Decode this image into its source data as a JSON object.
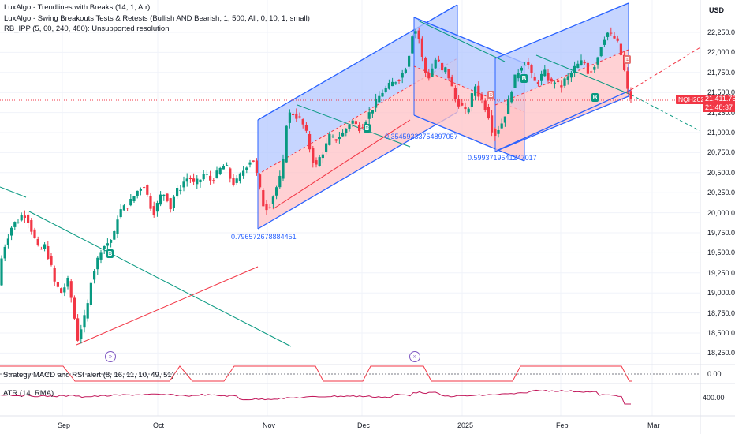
{
  "legends": [
    "LuxAlgo - Trendlines with Breaks (14, 1, Atr)",
    "LuxAlgo - Swing Breakouts Tests & Retests (Bullish AND Bearish, 1, 500, All, 0, 10, 1, small)",
    "RB_IPP (5, 60, 240, 480): Unsupported resolution"
  ],
  "currency": "USD",
  "price_axis": [
    "22,250.00",
    "22,000.00",
    "21,750.00",
    "21,500.00",
    "21,250.00",
    "21,000.00",
    "20,750.00",
    "20,500.00",
    "20,250.00",
    "20,000.00",
    "19,750.00",
    "19,500.00",
    "19,250.00",
    "19,000.00",
    "18,750.00",
    "18,500.00",
    "18,250.00"
  ],
  "symbol_tag": "NQH2025",
  "last_price": "21,411.75",
  "countdown": "21:48:37",
  "macd_axis": "0.00",
  "atr_axis": "400.00",
  "pane_labels": {
    "strategy": "Strategy MACD and RSI alert (8, 16, 11, 10, 49, 51)",
    "atr": "ATR (14, RMA)"
  },
  "time_axis": [
    "Sep",
    "Oct",
    "Nov",
    "Dec",
    "2025",
    "Feb",
    "Mar"
  ],
  "channel_labels": [
    "0.796572678884451",
    "0.35459233754897057",
    "0.5993719541247017"
  ],
  "badge_letters": {
    "bull": "B",
    "bear": "B"
  },
  "nav_icon": "double-chevron-right-icon",
  "colors": {
    "up": "#089981",
    "down": "#f23645",
    "channel_line": "#2962ff",
    "channel_fill_top": "#b3c7ff",
    "channel_fill_bottom": "#ffc1c6",
    "trend_teal": "#089981",
    "trend_red": "#f23645",
    "strategy_line": "#f23645",
    "atr_line": "#c2185b"
  }
}
